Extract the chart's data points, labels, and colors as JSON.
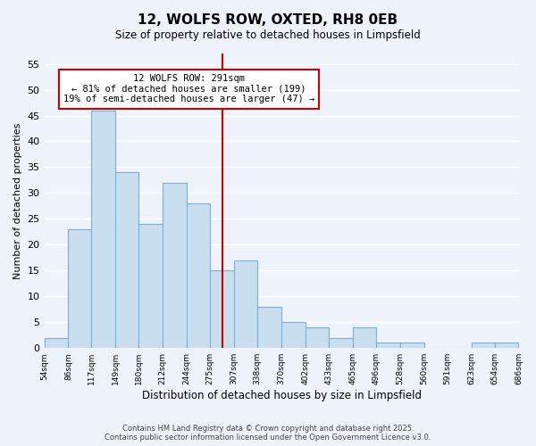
{
  "title": "12, WOLFS ROW, OXTED, RH8 0EB",
  "subtitle": "Size of property relative to detached houses in Limpsfield",
  "xlabel": "Distribution of detached houses by size in Limpsfield",
  "ylabel": "Number of detached properties",
  "bin_edges": [
    54,
    86,
    117,
    149,
    180,
    212,
    244,
    275,
    307,
    338,
    370,
    402,
    433,
    465,
    496,
    528,
    560,
    591,
    623,
    654,
    686
  ],
  "bar_heights": [
    2,
    23,
    46,
    34,
    24,
    32,
    28,
    15,
    17,
    8,
    5,
    4,
    2,
    4,
    1,
    1,
    0,
    0,
    1,
    1
  ],
  "bar_color": "#c9dff0",
  "bar_edgecolor": "#7aaed6",
  "property_line_x": 291,
  "property_line_color": "#cc0000",
  "ylim": [
    0,
    57
  ],
  "yticks": [
    0,
    5,
    10,
    15,
    20,
    25,
    30,
    35,
    40,
    45,
    50,
    55
  ],
  "annotation_title": "12 WOLFS ROW: 291sqm",
  "annotation_line1": "← 81% of detached houses are smaller (199)",
  "annotation_line2": "19% of semi-detached houses are larger (47) →",
  "annotation_box_color": "#ffffff",
  "annotation_box_edgecolor": "#cc0000",
  "background_color": "#eef2fb",
  "grid_color": "#ffffff",
  "footer_line1": "Contains HM Land Registry data © Crown copyright and database right 2025.",
  "footer_line2": "Contains public sector information licensed under the Open Government Licence v3.0.",
  "tick_labels": [
    "54sqm",
    "86sqm",
    "117sqm",
    "149sqm",
    "180sqm",
    "212sqm",
    "244sqm",
    "275sqm",
    "307sqm",
    "338sqm",
    "370sqm",
    "402sqm",
    "433sqm",
    "465sqm",
    "496sqm",
    "528sqm",
    "560sqm",
    "591sqm",
    "623sqm",
    "654sqm",
    "686sqm"
  ]
}
